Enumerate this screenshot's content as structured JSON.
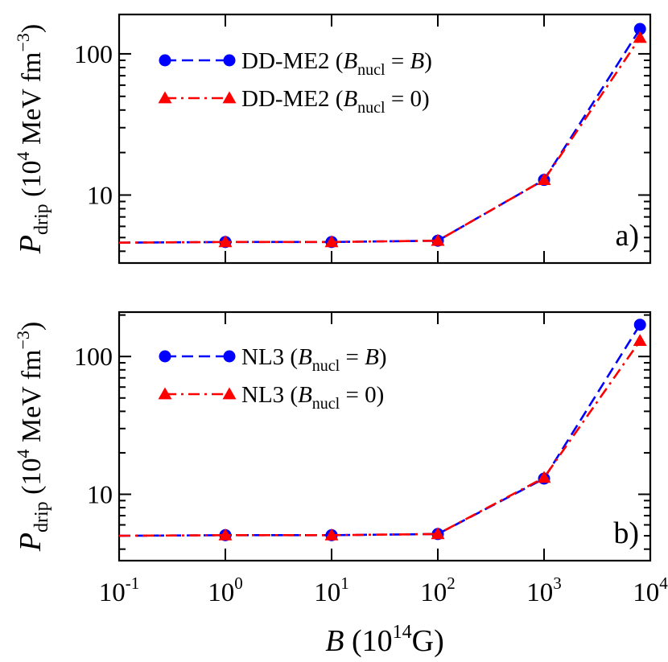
{
  "chart_data": [
    {
      "type": "line",
      "panel_label": "a)",
      "xscale": "log",
      "yscale": "log",
      "xlim": [
        0.1,
        10000
      ],
      "ylim": [
        3.3,
        190
      ],
      "ylabel": {
        "main": "P",
        "sub": "drip",
        "unit_prefix": "(10",
        "unit_exp": "4",
        "unit_mid": " MeV fm",
        "unit_exp2": "−3",
        "unit_suffix": ")"
      },
      "ytick_labels": [
        {
          "value": 10,
          "label": "10"
        },
        {
          "value": 100,
          "label": "100"
        }
      ],
      "x": [
        0.1,
        1,
        10,
        100,
        1000,
        8000
      ],
      "series": [
        {
          "name": "DD-ME2 (B_nucl = B)",
          "legend": {
            "prefix": "DD-ME2 (",
            "var": "B",
            "sub": "nucl",
            "rel": " = ",
            "rhs_italic": "B",
            "rhs": "",
            "suffix": ")"
          },
          "color": "#0000ff",
          "marker": "circle",
          "dash": "dashed",
          "values": [
            4.6,
            4.65,
            4.65,
            4.75,
            12.8,
            150
          ]
        },
        {
          "name": "DD-ME2 (B_nucl = 0)",
          "legend": {
            "prefix": "DD-ME2 (",
            "var": "B",
            "sub": "nucl",
            "rel": " = ",
            "rhs_italic": "",
            "rhs": "0",
            "suffix": ")"
          },
          "color": "#ff0000",
          "marker": "triangle",
          "dash": "dashdot",
          "values": [
            4.6,
            4.65,
            4.65,
            4.75,
            12.8,
            130
          ]
        }
      ]
    },
    {
      "type": "line",
      "panel_label": "b)",
      "xscale": "log",
      "yscale": "log",
      "xlim": [
        0.1,
        10000
      ],
      "ylim": [
        3.3,
        210
      ],
      "ylabel": {
        "main": "P",
        "sub": "drip",
        "unit_prefix": "(10",
        "unit_exp": "4",
        "unit_mid": " MeV fm",
        "unit_exp2": "−3",
        "unit_suffix": ")"
      },
      "ytick_labels": [
        {
          "value": 10,
          "label": "10"
        },
        {
          "value": 100,
          "label": "100"
        }
      ],
      "x": [
        0.1,
        1,
        10,
        100,
        1000,
        8000
      ],
      "xtick_labels": [
        {
          "value": 0.1,
          "base": "10",
          "exp": "-1"
        },
        {
          "value": 1,
          "base": "10",
          "exp": "0"
        },
        {
          "value": 10,
          "base": "10",
          "exp": "1"
        },
        {
          "value": 100,
          "base": "10",
          "exp": "2"
        },
        {
          "value": 1000,
          "base": "10",
          "exp": "3"
        },
        {
          "value": 10000,
          "base": "10",
          "exp": "4"
        }
      ],
      "xlabel": {
        "var": "B",
        "unit_prefix": " (10",
        "unit_exp": "14",
        "unit_suffix": "G)"
      },
      "series": [
        {
          "name": "NL3 (B_nucl = B)",
          "legend": {
            "prefix": "NL3 (",
            "var": "B",
            "sub": "nucl",
            "rel": " = ",
            "rhs_italic": "B",
            "rhs": "",
            "suffix": ")"
          },
          "color": "#0000ff",
          "marker": "circle",
          "dash": "dashed",
          "values": [
            5.0,
            5.05,
            5.05,
            5.15,
            13.0,
            170
          ]
        },
        {
          "name": "NL3 (B_nucl = 0)",
          "legend": {
            "prefix": "NL3 (",
            "var": "B",
            "sub": "nucl",
            "rel": " = ",
            "rhs_italic": "",
            "rhs": "0",
            "suffix": ")"
          },
          "color": "#ff0000",
          "marker": "triangle",
          "dash": "dashdot",
          "values": [
            5.0,
            5.05,
            5.05,
            5.15,
            13.2,
            130
          ]
        }
      ]
    }
  ]
}
